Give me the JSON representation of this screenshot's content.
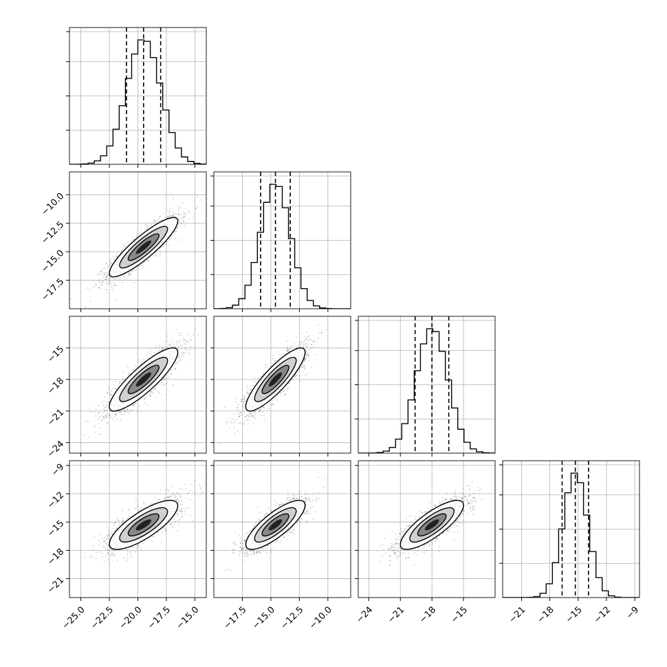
{
  "chart_data": {
    "type": "corner",
    "title": "",
    "grid": true,
    "colors": {
      "frame": "#000000",
      "grid": "#b0b0b0",
      "scatter": "#444444",
      "line": "#000000"
    },
    "params": [
      {
        "range": [
          -26.0,
          -14.0
        ],
        "ticks": [
          -25.0,
          -22.5,
          -20.0,
          -17.5,
          -15.0
        ],
        "tick_labels": [
          "−25.0",
          "−22.5",
          "−20.0",
          "−17.5",
          "−15.0"
        ],
        "mean": -19.5,
        "sd": 1.5,
        "quantiles": [
          -21.0,
          -19.5,
          -18.0
        ]
      },
      {
        "range": [
          -20.0,
          -8.0
        ],
        "ticks": [
          -17.5,
          -15.0,
          -12.5,
          -10.0
        ],
        "tick_labels": [
          "−17.5",
          "−15.0",
          "−12.5",
          "−10.0"
        ],
        "mean": -14.6,
        "sd": 1.3,
        "quantiles": [
          -15.9,
          -14.6,
          -13.3
        ]
      },
      {
        "range": [
          -25.0,
          -12.0
        ],
        "ticks": [
          -24,
          -21,
          -18,
          -15
        ],
        "tick_labels": [
          "−24",
          "−21",
          "−18",
          "−15"
        ],
        "mean": -18.0,
        "sd": 1.5,
        "quantiles": [
          -19.6,
          -18.0,
          -16.4
        ]
      },
      {
        "range": [
          -23.0,
          -8.5
        ],
        "ticks": [
          -21,
          -18,
          -15,
          -12,
          -9
        ],
        "tick_labels": [
          "−21",
          "−18",
          "−15",
          "−12",
          "−9"
        ],
        "mean": -15.3,
        "sd": 1.3,
        "quantiles": [
          -16.7,
          -15.3,
          -13.9
        ]
      }
    ],
    "correlations": {
      "1,0": 0.88,
      "2,0": 0.86,
      "2,1": 0.86,
      "3,0": 0.78,
      "3,1": 0.8,
      "3,2": 0.8
    },
    "samples_per_panel": 1800
  }
}
